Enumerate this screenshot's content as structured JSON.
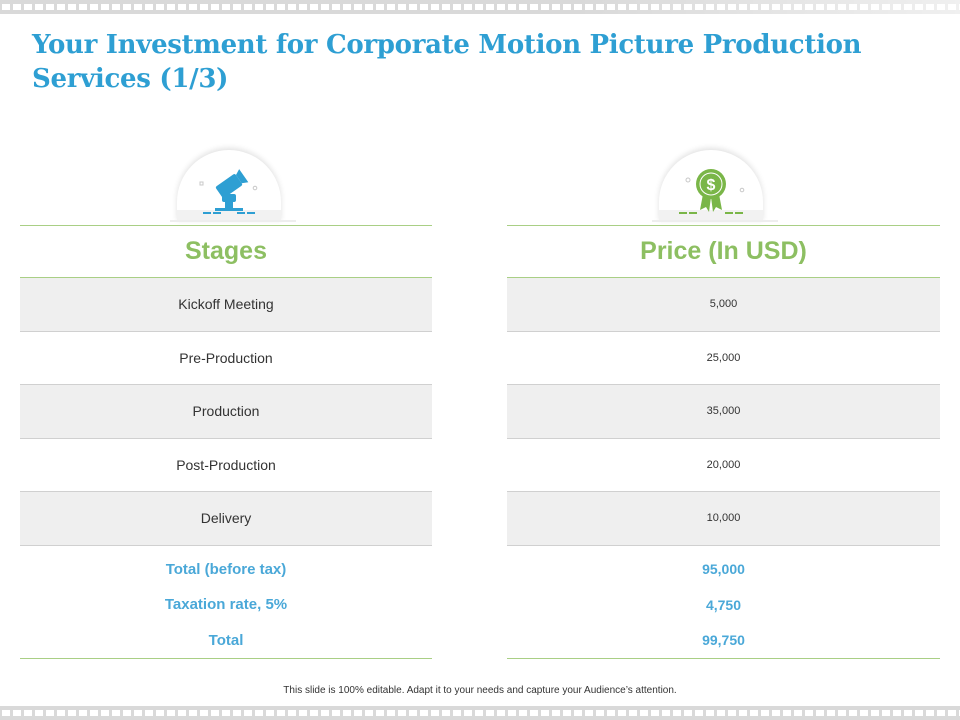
{
  "title": "Your Investment for Corporate Motion Picture Production Services (1/3)",
  "colors": {
    "title": "#2e9fd3",
    "header": "#8dbf62",
    "totals": "#4aa8d8",
    "stages_icon": "#2e9fd3",
    "price_icon": "#7ab648"
  },
  "icons": {
    "stages": "film-camera-icon",
    "price": "dollar-badge-icon"
  },
  "stages": {
    "header": "Stages",
    "rows": [
      "Kickoff Meeting",
      "Pre-Production",
      "Production",
      "Post-Production",
      "Delivery"
    ],
    "totals": [
      "Total (before tax)",
      "Taxation rate, 5%",
      "Total"
    ]
  },
  "price": {
    "header": "Price (In USD)",
    "rows": [
      "5,000",
      "25,000",
      "35,000",
      "20,000",
      "10,000"
    ],
    "totals": [
      "95,000",
      "4,750",
      "99,750"
    ]
  },
  "footer": "This slide is 100% editable.  Adapt it to your needs and capture your Audience’s attention."
}
